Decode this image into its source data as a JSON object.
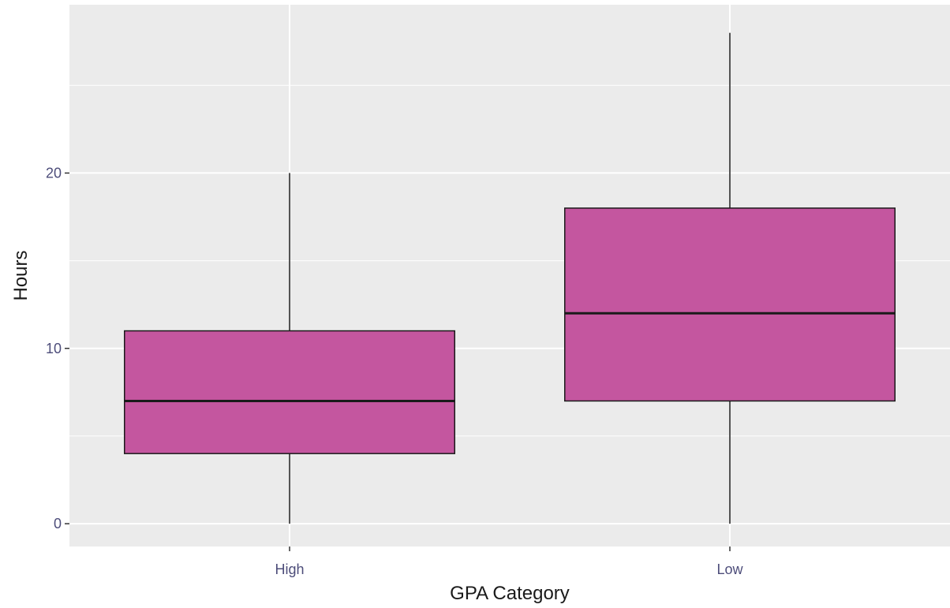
{
  "chart_data": {
    "type": "boxplot",
    "title": "",
    "xlabel": "GPA Category",
    "ylabel": "Hours",
    "categories": [
      "High",
      "Low"
    ],
    "boxes": [
      {
        "category": "High",
        "min": 0,
        "q1": 4,
        "median": 7,
        "q3": 11,
        "max": 20
      },
      {
        "category": "Low",
        "min": 0,
        "q1": 7,
        "median": 12,
        "q3": 18,
        "max": 28
      }
    ],
    "y_ticks": [
      0,
      10,
      20
    ],
    "ylim": [
      -1.3,
      29.6
    ],
    "grid": true,
    "legend": "none",
    "colors": {
      "panel_background": "#ebebeb",
      "gridline": "#ffffff",
      "box_fill": "#c4569f",
      "box_outline": "#1a1a1a",
      "tick_label": "#4d4d7a",
      "axis_title": "#1a1a1a"
    }
  }
}
